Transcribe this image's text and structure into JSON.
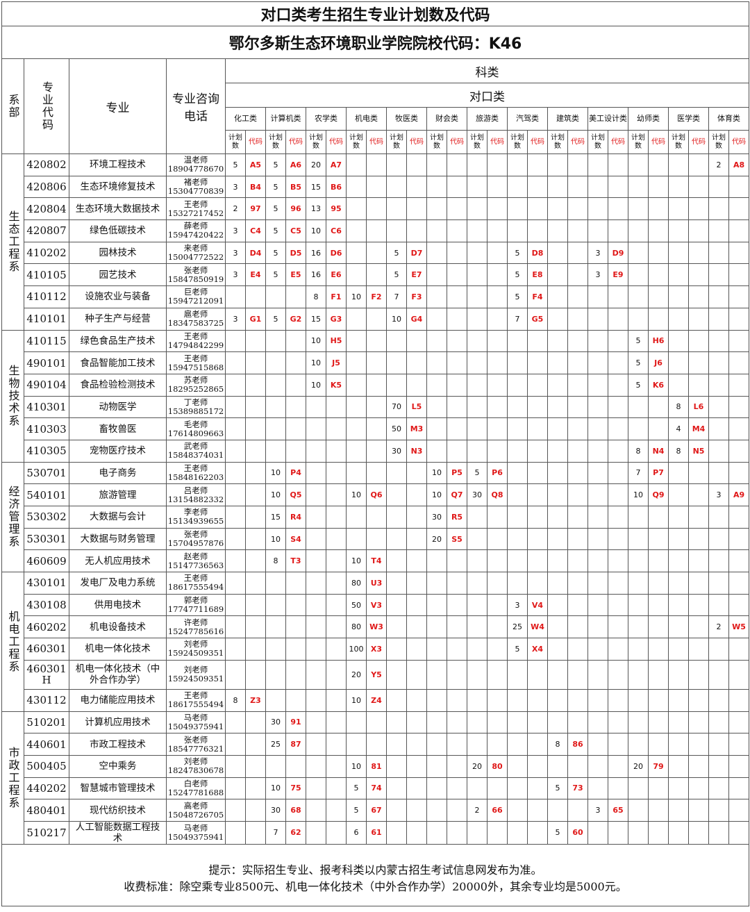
{
  "title": "对口类考生招生专业计划数及代码",
  "subtitle": "鄂尔多斯生态环境职业学院院校代码：K46",
  "header": {
    "dept": "系部",
    "code": "专业代码",
    "major": "专业",
    "phone": "专业咨询电话",
    "kelei": "科类",
    "duikou": "对口类",
    "categories": [
      "化工类",
      "计算机类",
      "农学类",
      "机电类",
      "牧医类",
      "财会类",
      "旅游类",
      "汽驾类",
      "建筑类",
      "美工设计类",
      "幼师类",
      "医学类",
      "体育类"
    ],
    "plan_label": "计划数",
    "code_label": "代码"
  },
  "departments": [
    {
      "name": "生态工程系",
      "majors": [
        {
          "code": "420802",
          "name": "环境工程技术",
          "teacher": "温老师",
          "phone": "18904778670",
          "cells": [
            [
              5,
              "A5"
            ],
            [
              5,
              "A6"
            ],
            [
              20,
              "A7"
            ],
            null,
            null,
            null,
            null,
            null,
            null,
            null,
            null,
            null,
            [
              2,
              "A8"
            ]
          ]
        },
        {
          "code": "420806",
          "name": "生态环境修复技术",
          "teacher": "褚老师",
          "phone": "15304770839",
          "cells": [
            [
              3,
              "B4"
            ],
            [
              5,
              "B5"
            ],
            [
              15,
              "B6"
            ],
            null,
            null,
            null,
            null,
            null,
            null,
            null,
            null,
            null,
            null
          ]
        },
        {
          "code": "420804",
          "name": "生态环境大数据技术",
          "teacher": "王老师",
          "phone": "15327217452",
          "cells": [
            [
              2,
              "97"
            ],
            [
              5,
              "96"
            ],
            [
              13,
              "95"
            ],
            null,
            null,
            null,
            null,
            null,
            null,
            null,
            null,
            null,
            null
          ]
        },
        {
          "code": "420807",
          "name": "绿色低碳技术",
          "teacher": "薛老师",
          "phone": "15947420422",
          "cells": [
            [
              3,
              "C4"
            ],
            [
              5,
              "C5"
            ],
            [
              10,
              "C6"
            ],
            null,
            null,
            null,
            null,
            null,
            null,
            null,
            null,
            null,
            null
          ]
        },
        {
          "code": "410202",
          "name": "园林技术",
          "teacher": "来老师",
          "phone": "15004772522",
          "cells": [
            [
              3,
              "D4"
            ],
            [
              5,
              "D5"
            ],
            [
              16,
              "D6"
            ],
            null,
            [
              5,
              "D7"
            ],
            null,
            null,
            [
              5,
              "D8"
            ],
            null,
            [
              3,
              "D9"
            ],
            null,
            null,
            null
          ]
        },
        {
          "code": "410105",
          "name": "园艺技术",
          "teacher": "张老师",
          "phone": "15847850919",
          "cells": [
            [
              3,
              "E4"
            ],
            [
              5,
              "E5"
            ],
            [
              16,
              "E6"
            ],
            null,
            [
              5,
              "E7"
            ],
            null,
            null,
            [
              5,
              "E8"
            ],
            null,
            [
              3,
              "E9"
            ],
            null,
            null,
            null
          ]
        },
        {
          "code": "410112",
          "name": "设施农业与装备",
          "teacher": "巨老师",
          "phone": "15947212091",
          "cells": [
            null,
            null,
            [
              8,
              "F1"
            ],
            [
              10,
              "F2"
            ],
            [
              7,
              "F3"
            ],
            null,
            null,
            [
              5,
              "F4"
            ],
            null,
            null,
            null,
            null,
            null
          ]
        },
        {
          "code": "410101",
          "name": "种子生产与经营",
          "teacher": "扈老师",
          "phone": "18347583725",
          "cells": [
            [
              3,
              "G1"
            ],
            [
              5,
              "G2"
            ],
            [
              15,
              "G3"
            ],
            null,
            [
              10,
              "G4"
            ],
            null,
            null,
            [
              7,
              "G5"
            ],
            null,
            null,
            null,
            null,
            null
          ]
        }
      ]
    },
    {
      "name": "生物技术系",
      "majors": [
        {
          "code": "410115",
          "name": "绿色食品生产技术",
          "teacher": "王老师",
          "phone": "14794842299",
          "cells": [
            null,
            null,
            [
              10,
              "H5"
            ],
            null,
            null,
            null,
            null,
            null,
            null,
            null,
            [
              5,
              "H6"
            ],
            null,
            null
          ]
        },
        {
          "code": "490101",
          "name": "食品智能加工技术",
          "teacher": "王老师",
          "phone": "15947515868",
          "cells": [
            null,
            null,
            [
              10,
              "J5"
            ],
            null,
            null,
            null,
            null,
            null,
            null,
            null,
            [
              5,
              "J6"
            ],
            null,
            null
          ]
        },
        {
          "code": "490104",
          "name": "食品检验检测技术",
          "teacher": "苏老师",
          "phone": "18295252865",
          "cells": [
            null,
            null,
            [
              10,
              "K5"
            ],
            null,
            null,
            null,
            null,
            null,
            null,
            null,
            [
              5,
              "K6"
            ],
            null,
            null
          ]
        },
        {
          "code": "410301",
          "name": "动物医学",
          "teacher": "丁老师",
          "phone": "15389885172",
          "cells": [
            null,
            null,
            null,
            null,
            [
              70,
              "L5"
            ],
            null,
            null,
            null,
            null,
            null,
            null,
            [
              8,
              "L6"
            ],
            null
          ]
        },
        {
          "code": "410303",
          "name": "畜牧兽医",
          "teacher": "毛老师",
          "phone": "17614809663",
          "cells": [
            null,
            null,
            null,
            null,
            [
              50,
              "M3"
            ],
            null,
            null,
            null,
            null,
            null,
            null,
            [
              4,
              "M4"
            ],
            null
          ]
        },
        {
          "code": "410305",
          "name": "宠物医疗技术",
          "teacher": "武老师",
          "phone": "15848374031",
          "cells": [
            null,
            null,
            null,
            null,
            [
              30,
              "N3"
            ],
            null,
            null,
            null,
            null,
            null,
            [
              8,
              "N4"
            ],
            [
              8,
              "N5"
            ],
            null
          ]
        }
      ]
    },
    {
      "name": "经济管理系",
      "majors": [
        {
          "code": "530701",
          "name": "电子商务",
          "teacher": "王老师",
          "phone": "15848162203",
          "cells": [
            null,
            [
              10,
              "P4"
            ],
            null,
            null,
            null,
            [
              10,
              "P5"
            ],
            [
              5,
              "P6"
            ],
            null,
            null,
            null,
            [
              7,
              "P7"
            ],
            null,
            null
          ]
        },
        {
          "code": "540101",
          "name": "旅游管理",
          "teacher": "吕老师",
          "phone": "13154882332",
          "cells": [
            null,
            [
              10,
              "Q5"
            ],
            null,
            [
              10,
              "Q6"
            ],
            null,
            [
              10,
              "Q7"
            ],
            [
              30,
              "Q8"
            ],
            null,
            null,
            null,
            [
              10,
              "Q9"
            ],
            null,
            [
              3,
              "A9"
            ]
          ]
        },
        {
          "code": "530302",
          "name": "大数据与会计",
          "teacher": "李老师",
          "phone": "15134939655",
          "cells": [
            null,
            [
              15,
              "R4"
            ],
            null,
            null,
            null,
            [
              30,
              "R5"
            ],
            null,
            null,
            null,
            null,
            null,
            null,
            null
          ]
        },
        {
          "code": "530301",
          "name": "大数据与财务管理",
          "teacher": "张老师",
          "phone": "15704957876",
          "cells": [
            null,
            [
              10,
              "S4"
            ],
            null,
            null,
            null,
            [
              20,
              "S5"
            ],
            null,
            null,
            null,
            null,
            null,
            null,
            null
          ]
        },
        {
          "code": "460609",
          "name": "无人机应用技术",
          "teacher": "赵老师",
          "phone": "15147736563",
          "cells": [
            null,
            [
              8,
              "T3"
            ],
            null,
            [
              10,
              "T4"
            ],
            null,
            null,
            null,
            null,
            null,
            null,
            null,
            null,
            null
          ]
        }
      ]
    },
    {
      "name": "机电工程系",
      "majors": [
        {
          "code": "430101",
          "name": "发电厂及电力系统",
          "teacher": "王老师",
          "phone": "18617555494",
          "cells": [
            null,
            null,
            null,
            [
              80,
              "U3"
            ],
            null,
            null,
            null,
            null,
            null,
            null,
            null,
            null,
            null
          ]
        },
        {
          "code": "430108",
          "name": "供用电技术",
          "teacher": "郭老师",
          "phone": "17747711689",
          "cells": [
            null,
            null,
            null,
            [
              50,
              "V3"
            ],
            null,
            null,
            null,
            [
              3,
              "V4"
            ],
            null,
            null,
            null,
            null,
            null
          ]
        },
        {
          "code": "460202",
          "name": "机电设备技术",
          "teacher": "许老师",
          "phone": "15247785616",
          "cells": [
            null,
            null,
            null,
            [
              80,
              "W3"
            ],
            null,
            null,
            null,
            [
              25,
              "W4"
            ],
            null,
            null,
            null,
            null,
            [
              2,
              "W5"
            ]
          ]
        },
        {
          "code": "460301",
          "name": "机电一体化技术",
          "teacher": "刘老师",
          "phone": "15924509351",
          "cells": [
            null,
            null,
            null,
            [
              100,
              "X3"
            ],
            null,
            null,
            null,
            [
              5,
              "X4"
            ],
            null,
            null,
            null,
            null,
            null
          ]
        },
        {
          "code": "460301 H",
          "name": "机电一体化技术（中外合作办学）",
          "teacher": "刘老师",
          "phone": "15924509351",
          "cells": [
            null,
            null,
            null,
            [
              20,
              "Y5"
            ],
            null,
            null,
            null,
            null,
            null,
            null,
            null,
            null,
            null
          ]
        },
        {
          "code": "430112",
          "name": "电力储能应用技术",
          "teacher": "王老师",
          "phone": "18617555494",
          "cells": [
            [
              8,
              "Z3"
            ],
            null,
            null,
            [
              10,
              "Z4"
            ],
            null,
            null,
            null,
            null,
            null,
            null,
            null,
            null,
            null
          ]
        }
      ]
    },
    {
      "name": "市政工程系",
      "majors": [
        {
          "code": "510201",
          "name": "计算机应用技术",
          "teacher": "马老师",
          "phone": "15049375941",
          "cells": [
            null,
            [
              30,
              "91"
            ],
            null,
            null,
            null,
            null,
            null,
            null,
            null,
            null,
            null,
            null,
            null
          ]
        },
        {
          "code": "440601",
          "name": "市政工程技术",
          "teacher": "张老师",
          "phone": "18547776321",
          "cells": [
            null,
            [
              25,
              "87"
            ],
            null,
            null,
            null,
            null,
            null,
            null,
            [
              8,
              "86"
            ],
            null,
            null,
            null,
            null
          ]
        },
        {
          "code": "500405",
          "name": "空中乘务",
          "teacher": "刘老师",
          "phone": "18247830678",
          "cells": [
            null,
            null,
            null,
            [
              10,
              "81"
            ],
            null,
            null,
            [
              20,
              "80"
            ],
            null,
            null,
            null,
            [
              20,
              "79"
            ],
            null,
            null
          ]
        },
        {
          "code": "440202",
          "name": "智慧城市管理技术",
          "teacher": "白老师",
          "phone": "15247781688",
          "cells": [
            null,
            [
              10,
              "75"
            ],
            null,
            [
              5,
              "74"
            ],
            null,
            null,
            null,
            null,
            [
              5,
              "73"
            ],
            null,
            null,
            null,
            null
          ]
        },
        {
          "code": "480401",
          "name": "现代纺织技术",
          "teacher": "高老师",
          "phone": "15048726705",
          "cells": [
            null,
            [
              30,
              "68"
            ],
            null,
            [
              5,
              "67"
            ],
            null,
            null,
            [
              2,
              "66"
            ],
            null,
            null,
            [
              3,
              "65"
            ],
            null,
            null,
            null
          ]
        },
        {
          "code": "510217",
          "name": "人工智能数据工程技术",
          "teacher": "马老师",
          "phone": "15049375941",
          "cells": [
            null,
            [
              7,
              "62"
            ],
            null,
            [
              6,
              "61"
            ],
            null,
            null,
            null,
            null,
            [
              5,
              "60"
            ],
            null,
            null,
            null,
            null
          ]
        }
      ]
    }
  ],
  "footer": {
    "note": "提示：实际招生专业、报考科类以内蒙古招生考试信息网发布为准。",
    "fees": "收费标准：除空乘专业8500元、机电一体化技术（中外合作办学）20000外，其余专业均是5000元。"
  }
}
